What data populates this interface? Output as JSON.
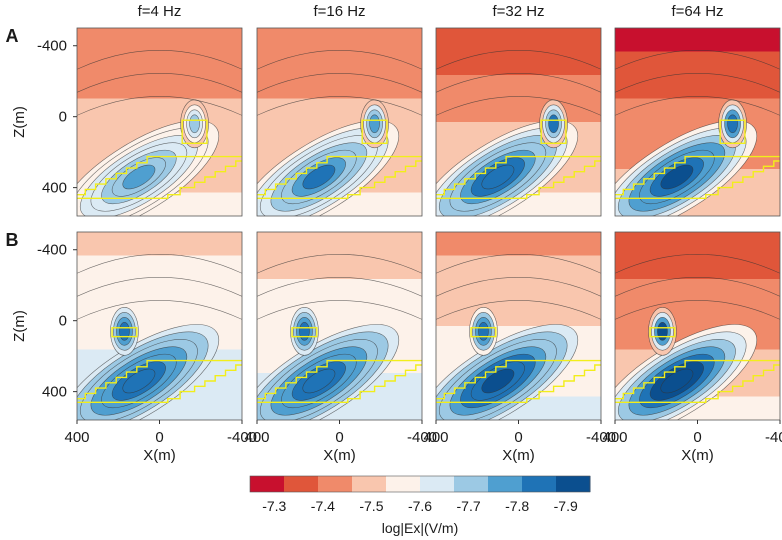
{
  "chart_data": {
    "type": "heatmap",
    "colorbar": {
      "label": "log|Ex|(V/m)",
      "ticks": [
        "-7.3",
        "-7.4",
        "-7.5",
        "-7.6",
        "-7.7",
        "-7.8",
        "-7.9"
      ],
      "range": [
        -7.25,
        -7.95
      ],
      "colors": [
        "#c8102e",
        "#e0563a",
        "#f08a6a",
        "#f9c6ae",
        "#fdf2ea",
        "#dbeaf4",
        "#9cc9e4",
        "#4f9fd0",
        "#1f73b6",
        "#0b4f8f"
      ]
    },
    "frequencies": [
      "f=4 Hz",
      "f=16 Hz",
      "f=32 Hz",
      "f=64 Hz"
    ],
    "rows": [
      {
        "label": "A",
        "body_depth": "shallow+deep"
      },
      {
        "label": "B",
        "body_depth": "shallow+deep"
      }
    ],
    "x_axis": {
      "label": "X(m)",
      "ticks": [
        "400",
        "0",
        "-400"
      ],
      "range": [
        400,
        -400
      ]
    },
    "y_axis": {
      "label": "Z(m)",
      "ticks": [
        "-400",
        "0",
        "400"
      ],
      "range": [
        -500,
        560
      ]
    },
    "panels": [
      {
        "row": "A",
        "freq": "f=4 Hz",
        "surface_value": -7.42,
        "body_value": -7.74
      },
      {
        "row": "A",
        "freq": "f=16 Hz",
        "surface_value": -7.4,
        "body_value": -7.82
      },
      {
        "row": "A",
        "freq": "f=32 Hz",
        "surface_value": -7.36,
        "body_value": -7.88
      },
      {
        "row": "A",
        "freq": "f=64 Hz",
        "surface_value": -7.3,
        "body_value": -7.93
      },
      {
        "row": "B",
        "freq": "f=4 Hz",
        "surface_value": -7.52,
        "body_value": -7.85
      },
      {
        "row": "B",
        "freq": "f=16 Hz",
        "surface_value": -7.5,
        "body_value": -7.88
      },
      {
        "row": "B",
        "freq": "f=32 Hz",
        "surface_value": -7.44,
        "body_value": -7.91
      },
      {
        "row": "B",
        "freq": "f=64 Hz",
        "surface_value": -7.34,
        "body_value": -7.94
      }
    ]
  }
}
